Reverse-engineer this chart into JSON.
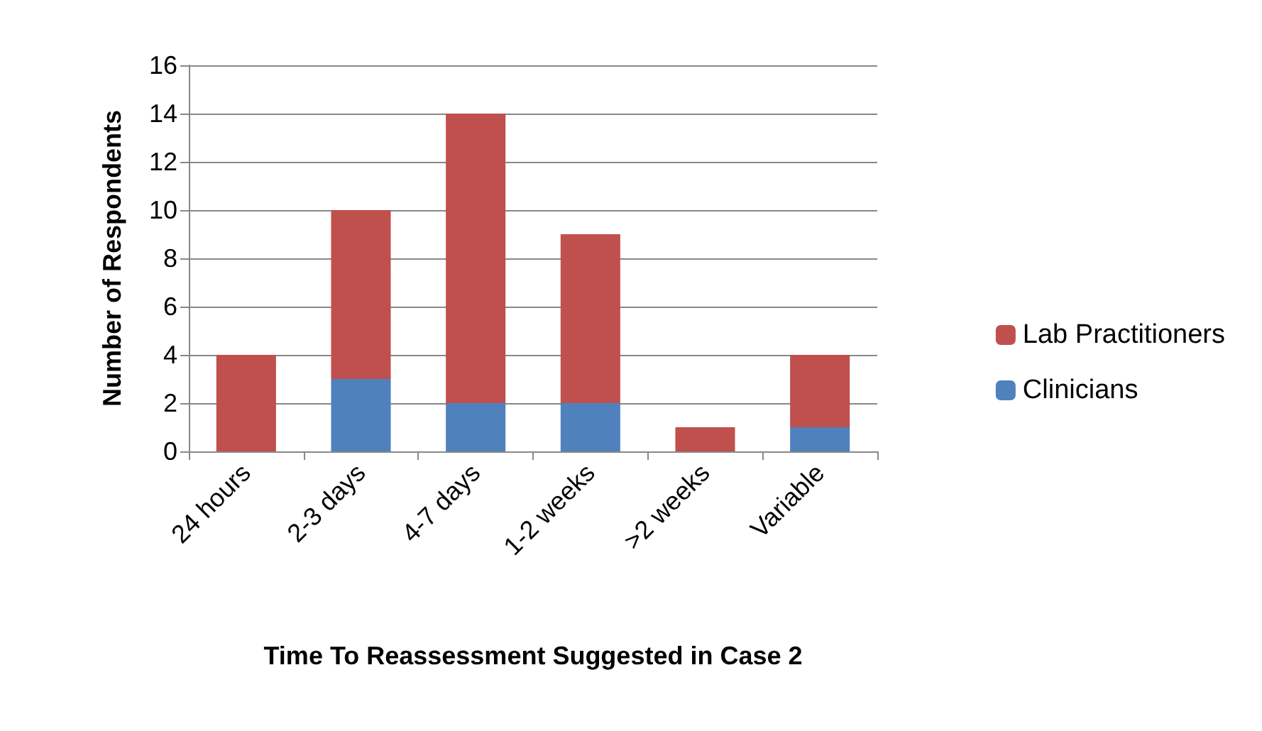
{
  "chart_data": {
    "type": "bar",
    "stacked": true,
    "xlabel": "Time To Reassessment Suggested in Case 2",
    "ylabel": "Number of Respondents",
    "categories": [
      "24 hours",
      "2-3 days",
      "4-7 days",
      "1-2 weeks",
      ">2 weeks",
      "Variable"
    ],
    "series": [
      {
        "name": "Clinicians",
        "color": "#4f81bd",
        "values": [
          0,
          3,
          2,
          2,
          0,
          1
        ]
      },
      {
        "name": "Lab Practitioners",
        "color": "#c0504d",
        "values": [
          4,
          7,
          12,
          7,
          1,
          3
        ]
      }
    ],
    "ylim": [
      0,
      16
    ],
    "yticks": [
      0,
      2,
      4,
      6,
      8,
      10,
      12,
      14,
      16
    ],
    "grid": "y",
    "legend": "right"
  }
}
